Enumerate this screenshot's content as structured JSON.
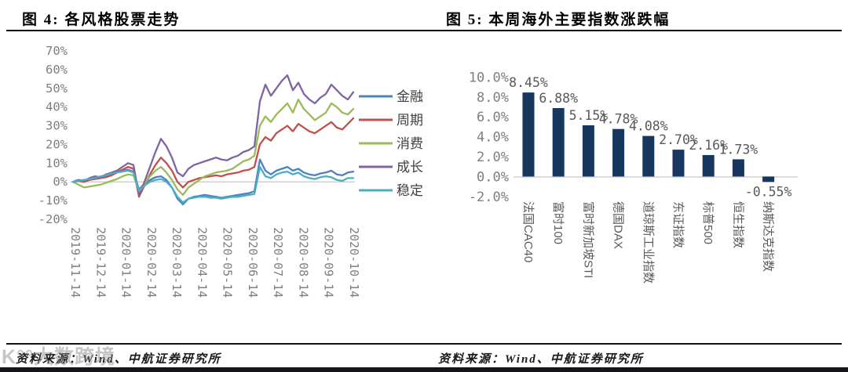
{
  "page": {
    "watermark": "K°°大数跨境"
  },
  "chart_data": [
    {
      "type": "line",
      "title": "图 4: 各风格股票走势",
      "source": "资料来源：Wind、中航证券研究所",
      "y_unit": "%",
      "ylim": [
        -20,
        70
      ],
      "y_ticks": [
        "70%",
        "60%",
        "50%",
        "40%",
        "30%",
        "20%",
        "10%",
        "0%",
        "-10%",
        "-20%"
      ],
      "y_tick_values": [
        70,
        60,
        50,
        40,
        30,
        20,
        10,
        0,
        -10,
        -20
      ],
      "x_tick_labels": [
        "2019-11-14",
        "2019-12-14",
        "2020-01-14",
        "2020-02-14",
        "2020-03-14",
        "2020-04-14",
        "2020-05-14",
        "2020-06-14",
        "2020-07-14",
        "2020-08-14",
        "2020-09-14",
        "2020-10-14"
      ],
      "sampling": "weekly, 2019-11-14 to 2020-11-06 (values in %, estimated from plot)",
      "legend_position": "right",
      "grid": "0%-axis line only",
      "series": [
        {
          "name": "金融",
          "color": "#4F81BD",
          "values": [
            0,
            1,
            0.5,
            1.5,
            2,
            2.5,
            3.5,
            4.5,
            5,
            6,
            6.5,
            5.5,
            -4,
            -1,
            1,
            2.5,
            3,
            1,
            -3,
            -9,
            -12,
            -9,
            -8,
            -7.5,
            -7,
            -7.5,
            -8,
            -8.5,
            -8,
            -7.5,
            -7,
            -6.5,
            -6,
            -5,
            12,
            6,
            4,
            6,
            7,
            8,
            6,
            7,
            5,
            4,
            3.5,
            4.5,
            5,
            6,
            4,
            3.5,
            5,
            5.5
          ]
        },
        {
          "name": "周期",
          "color": "#C0504D",
          "values": [
            0,
            0.5,
            0,
            1,
            1.5,
            2,
            2.5,
            3.5,
            5,
            6.5,
            8,
            7,
            -8,
            -2,
            4,
            9,
            13,
            10,
            6,
            0,
            -3,
            0,
            1,
            2,
            2.5,
            3,
            3.5,
            3,
            4,
            4.5,
            5,
            6,
            6.5,
            8,
            20,
            24,
            22,
            26,
            28,
            30,
            27,
            31,
            29,
            27,
            26,
            28,
            30,
            32,
            29,
            28,
            31,
            34
          ]
        },
        {
          "name": "消费",
          "color": "#9BBB59",
          "values": [
            0,
            -1.5,
            -3,
            -2.5,
            -2,
            -1.5,
            -0.5,
            0.5,
            1.5,
            3,
            4,
            3.5,
            -5,
            -1,
            3,
            6,
            8,
            5,
            1,
            -4,
            -7,
            -3,
            -1,
            1,
            3,
            4,
            5,
            5.5,
            6,
            7,
            9,
            11,
            12,
            14,
            30,
            35,
            32,
            36,
            39,
            42,
            37,
            44,
            39,
            36,
            33,
            35,
            37,
            42,
            40,
            37,
            36,
            39
          ]
        },
        {
          "name": "成长",
          "color": "#8064A2",
          "values": [
            0,
            1,
            0.5,
            2,
            3,
            2.5,
            4,
            5,
            6,
            8,
            10,
            9,
            -7,
            0,
            8,
            16,
            23,
            19,
            13,
            5,
            3,
            7,
            9,
            10,
            11,
            12,
            13,
            12,
            11.5,
            13,
            14,
            16,
            17,
            19,
            43,
            52,
            46,
            50,
            54,
            57,
            49,
            53,
            47,
            44,
            42,
            45,
            47,
            52,
            49,
            46,
            44,
            48
          ]
        },
        {
          "name": "稳定",
          "color": "#4BACC6",
          "values": [
            0,
            0.5,
            1,
            1.5,
            2,
            3,
            3.5,
            4.5,
            5,
            5.5,
            6,
            5,
            -5,
            -2,
            0,
            1,
            1.5,
            0,
            -3,
            -8,
            -11,
            -9,
            -8.5,
            -8,
            -8,
            -8.5,
            -8.5,
            -9,
            -8.5,
            -8,
            -8,
            -7.5,
            -7,
            -6.5,
            8,
            3,
            2,
            4,
            5,
            5.5,
            4,
            5,
            3,
            2,
            1.5,
            2.5,
            3,
            2.5,
            1,
            0.5,
            2,
            2
          ]
        }
      ]
    },
    {
      "type": "bar",
      "title": "图 5: 本周海外主要指数涨跌幅",
      "source": "资料来源：Wind、中航证券研究所",
      "bar_color": "#17375E",
      "ylim": [
        -2,
        10
      ],
      "y_ticks": [
        "10.0%",
        "8.0%",
        "6.0%",
        "4.0%",
        "2.0%",
        "0.0%",
        "-2.0%"
      ],
      "y_tick_values": [
        10,
        8,
        6,
        4,
        2,
        0,
        -2
      ],
      "categories": [
        "法国CAC40",
        "富时100",
        "富时新加坡STI",
        "德国DAX",
        "道琼斯工业指数",
        "东证指数",
        "标普500",
        "恒生指数",
        "纳斯达克指数"
      ],
      "values": [
        8.45,
        6.88,
        5.15,
        4.78,
        4.08,
        2.7,
        2.16,
        1.73,
        -0.55
      ],
      "labels": [
        "8.45%",
        "6.88%",
        "5.15%",
        "4.78%",
        "4.08%",
        "2.70%",
        "2.16%",
        "1.73%",
        "-0.55%"
      ],
      "grid": "0%-baseline only",
      "legend_position": "none"
    }
  ]
}
